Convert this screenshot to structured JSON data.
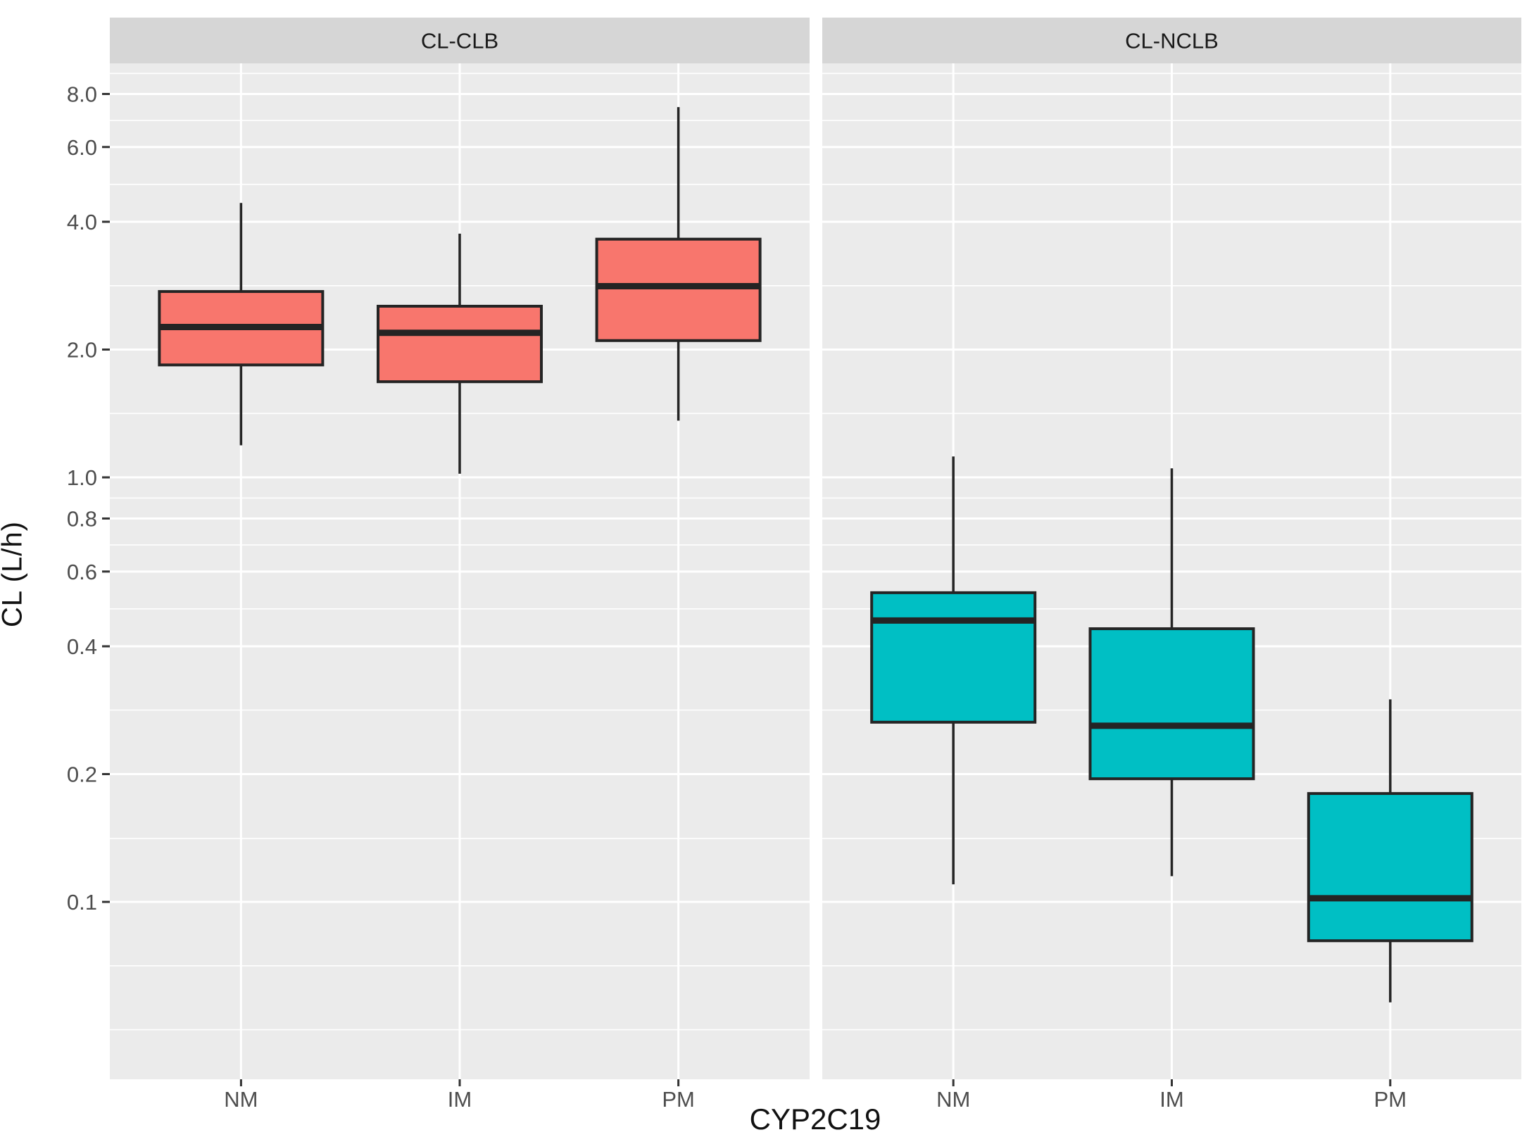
{
  "chart_data": {
    "type": "boxplot",
    "title": "",
    "xlabel": "CYP2C19",
    "ylabel": "CL (L/h)",
    "y_scale": "log10",
    "ylim": [
      0.038,
      9.44
    ],
    "grid": "on",
    "legend": "none",
    "categories": [
      "NM",
      "IM",
      "PM"
    ],
    "y_axis": {
      "labels": [
        "8.0",
        "6.0",
        "4.0",
        "2.0",
        "1.0",
        "0.8",
        "0.6",
        "0.4",
        "0.2",
        "0.1"
      ],
      "values": [
        8.0,
        6.0,
        4.0,
        2.0,
        1.0,
        0.8,
        0.6,
        0.4,
        0.2,
        0.1
      ]
    },
    "y_minor_gridlines": [
      8.944,
      6.928,
      4.899,
      2.828,
      1.414,
      0.894,
      0.693,
      0.49,
      0.283,
      0.141,
      0.0707,
      0.05
    ],
    "facets": [
      {
        "label": "CL-CLB",
        "box_fill": "#F8766D",
        "boxes": [
          {
            "category": "NM",
            "min": 1.19,
            "q1": 1.84,
            "median": 2.26,
            "q3": 2.74,
            "max": 4.43
          },
          {
            "category": "IM",
            "min": 1.02,
            "q1": 1.68,
            "median": 2.19,
            "q3": 2.53,
            "max": 3.75
          },
          {
            "category": "PM",
            "min": 1.36,
            "q1": 2.1,
            "median": 2.82,
            "q3": 3.64,
            "max": 7.45
          }
        ]
      },
      {
        "label": "CL-NCLB",
        "box_fill": "#00BFC4",
        "boxes": [
          {
            "category": "NM",
            "min": 0.11,
            "q1": 0.265,
            "median": 0.46,
            "q3": 0.535,
            "max": 1.12
          },
          {
            "category": "IM",
            "min": 0.115,
            "q1": 0.195,
            "median": 0.26,
            "q3": 0.44,
            "max": 1.05
          },
          {
            "category": "PM",
            "min": 0.058,
            "q1": 0.081,
            "median": 0.102,
            "q3": 0.18,
            "max": 0.3
          }
        ]
      }
    ],
    "style": {
      "panel_bg": "#EBEBEB",
      "strip_bg": "#D6D6D6",
      "gridline": "#FFFFFF",
      "box_border": "#242424",
      "tick_mark": "#333333",
      "axis_text": "#4D4D4D",
      "title_text": "#111111"
    }
  }
}
